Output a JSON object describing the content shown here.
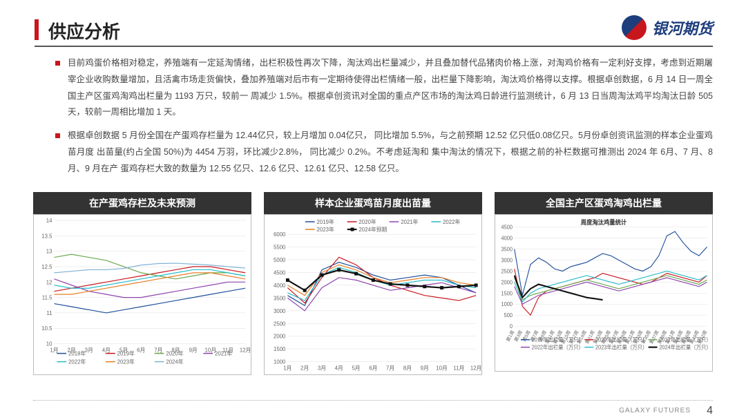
{
  "header": {
    "title": "供应分析",
    "brand": "银河期货",
    "accent_color": "#c8161d"
  },
  "bullets": [
    "目前鸡蛋价格相对稳定，养殖端有一定延淘情绪，出栏积极性再次下降，淘汰鸡出栏量减少，并且叠加替代品猪肉价格上涨，对淘鸡价格有一定利好支撑，考虑到近期屠宰企业收购数量增加，且活禽市场走货偏快，叠加养殖端对后市有一定期待使得出栏情绪一般，出栏量下降影响，淘汰鸡价格得以支撑。根据卓创数据，6 月 14 日一周全国主产区蛋鸡淘鸡出栏量为 1193 万只，较前一 周减少 1.5%。根据卓创资讯对全国的重点产区市场的淘汰鸡日龄进行监测统计，6 月 13 日当周淘汰鸡平均淘汰日龄 505 天，较前一周相比增加 1 天。",
    "根据卓创数据 5 月份全国在产蛋鸡存栏量为 12.44亿只，较上月增加 0.04亿只， 同比增加 5.5%，与之前预期 12.52 亿只低0.08亿只。5月份卓创资讯监测的样本企业蛋鸡苗月度 出苗量(约占全国 50%)为 4454 万羽，环比减少2.8%， 同比减少 0.2%。不考虑延淘和 集中淘汰的情况下，根据之前的补栏数据可推测出 2024 年 6月、7 月、8 月、9 月在产 蛋鸡存栏大致的数量为 12.55 亿只、12.6 亿只、12.61 亿只、12.58 亿只。"
  ],
  "chart1": {
    "title": "在产蛋鸡存栏及未来预测",
    "ylim": [
      10,
      14
    ],
    "yticks": [
      10,
      10.5,
      11,
      11.5,
      12,
      12.5,
      13,
      13.5,
      14
    ],
    "xlabels": [
      "1月",
      "2月",
      "3月",
      "4月",
      "5月",
      "6月",
      "7月",
      "8月",
      "9月",
      "10月",
      "11月",
      "12月"
    ],
    "series": {
      "2018年": {
        "color": "#1f4e9b",
        "data": [
          11.3,
          11.2,
          11.1,
          11.0,
          11.1,
          11.2,
          11.3,
          11.4,
          11.5,
          11.6,
          11.7,
          11.8
        ]
      },
      "2019年": {
        "color": "#c8161d",
        "data": [
          11.7,
          11.8,
          11.9,
          12.0,
          12.1,
          12.2,
          12.3,
          12.4,
          12.5,
          12.5,
          12.4,
          12.3
        ]
      },
      "2020年": {
        "color": "#6aa84f",
        "data": [
          12.8,
          12.9,
          12.8,
          12.7,
          12.5,
          12.3,
          12.2,
          12.1,
          12.2,
          12.3,
          12.3,
          12.2
        ]
      },
      "2021年": {
        "color": "#8e44ad",
        "data": [
          12.1,
          11.9,
          11.7,
          11.6,
          11.5,
          11.5,
          11.6,
          11.7,
          11.8,
          11.9,
          12.0,
          12.0
        ]
      },
      "2022年": {
        "color": "#27bcc9",
        "data": [
          11.9,
          11.8,
          11.8,
          11.9,
          12.0,
          12.1,
          12.2,
          12.3,
          12.4,
          12.4,
          12.3,
          12.2
        ]
      },
      "2023年": {
        "color": "#e67e22",
        "data": [
          11.6,
          11.6,
          11.7,
          11.8,
          11.9,
          12.0,
          12.1,
          12.2,
          12.3,
          12.3,
          12.2,
          12.1
        ]
      },
      "2024年": {
        "color": "#7fb3d5",
        "data": [
          12.3,
          12.35,
          12.4,
          12.4,
          12.44,
          12.55,
          12.6,
          12.61,
          12.58,
          12.55,
          12.5,
          12.45
        ]
      }
    }
  },
  "chart2": {
    "title": "样本企业蛋鸡苗月度出苗量",
    "ylim": [
      1000,
      6000
    ],
    "yticks": [
      1000,
      1500,
      2000,
      2500,
      3000,
      3500,
      4000,
      4500,
      5000,
      5500,
      6000
    ],
    "xlabels": [
      "1月",
      "2月",
      "3月",
      "4月",
      "5月",
      "6月",
      "7月",
      "8月",
      "9月",
      "10月",
      "11月",
      "12月"
    ],
    "series": {
      "2019年": {
        "color": "#1f4e9b",
        "data": [
          3600,
          3200,
          4600,
          4900,
          4700,
          4400,
          4200,
          4300,
          4400,
          4300,
          4000,
          3700
        ]
      },
      "2020年": {
        "color": "#c8161d",
        "data": [
          3900,
          3300,
          4300,
          5100,
          4800,
          4300,
          4000,
          3800,
          3600,
          3500,
          3400,
          3600
        ]
      },
      "2021年": {
        "color": "#8e44ad",
        "data": [
          3500,
          3000,
          3900,
          4300,
          4200,
          4000,
          3800,
          3900,
          4000,
          4100,
          3900,
          3700
        ]
      },
      "2022年": {
        "color": "#27bcc9",
        "data": [
          3700,
          3400,
          4400,
          4700,
          4500,
          4200,
          4000,
          4100,
          4200,
          4200,
          4000,
          3900
        ]
      },
      "2023年": {
        "color": "#e67e22",
        "data": [
          4000,
          3600,
          4500,
          4800,
          4600,
          4300,
          4100,
          4200,
          4300,
          4300,
          4100,
          4000
        ]
      },
      "2024年预期": {
        "color": "#111111",
        "data": [
          4200,
          3800,
          4400,
          4600,
          4454,
          4200,
          4050,
          4000,
          3950,
          3900,
          3950,
          4000
        ],
        "bold": true,
        "marker": true
      }
    }
  },
  "chart3": {
    "title": "全国主产区蛋鸡淘鸡出栏量",
    "inner_title": "周度淘汰鸡量统计",
    "ylim": [
      0,
      4500
    ],
    "yticks": [
      0,
      500,
      1000,
      1500,
      2000,
      2500,
      3000,
      3500,
      4000,
      4500
    ],
    "xlabels": [
      "第1周",
      "第3周",
      "第5周",
      "第7周",
      "第9周",
      "第11周",
      "第13周",
      "第15周",
      "第17周",
      "第19周",
      "第21周",
      "第23周",
      "第25周",
      "第27周",
      "第29周",
      "第31周",
      "第33周",
      "第35周",
      "第37周",
      "第39周",
      "第41周",
      "第43周",
      "第46周",
      "第49周",
      "第52周"
    ],
    "series": {
      "2019年出栏量（万只）": {
        "color": "#1f4e9b",
        "data": [
          3500,
          1400,
          2800,
          3100,
          2900,
          2600,
          2500,
          2700,
          2800,
          2900,
          3100,
          3300,
          3200,
          3000,
          2800,
          2600,
          2500,
          2700,
          3200,
          4100,
          4300,
          3800,
          3400,
          3200,
          3600
        ]
      },
      "2020年出栏量（万只）": {
        "color": "#c8161d",
        "data": [
          2600,
          900,
          500,
          1300,
          1600,
          1700,
          1800,
          1900,
          2000,
          2100,
          2200,
          2400,
          2300,
          2200,
          2100,
          2000,
          1900,
          2000,
          2200,
          2400,
          2300,
          2200,
          2100,
          2000,
          2300
        ]
      },
      "2021年出栏量（万只）": {
        "color": "#6aa84f",
        "data": [
          2200,
          1200,
          1400,
          1500,
          1600,
          1700,
          1800,
          1900,
          2000,
          2100,
          2000,
          1900,
          1800,
          1700,
          1800,
          1900,
          2000,
          2100,
          2200,
          2300,
          2200,
          2100,
          2000,
          1900,
          2100
        ]
      },
      "2022年出栏量（万只）": {
        "color": "#8e44ad",
        "data": [
          1800,
          1000,
          1200,
          1400,
          1500,
          1600,
          1700,
          1800,
          1900,
          2000,
          1900,
          1800,
          1700,
          1600,
          1700,
          1800,
          1900,
          2000,
          2100,
          2200,
          2100,
          2000,
          1900,
          1800,
          2000
        ]
      },
      "2023年出栏量（万只）": {
        "color": "#27bcc9",
        "data": [
          2000,
          1100,
          1500,
          1700,
          1800,
          1900,
          2000,
          2100,
          2200,
          2300,
          2200,
          2100,
          2000,
          1900,
          2000,
          2100,
          2200,
          2300,
          2400,
          2500,
          2400,
          2300,
          2200,
          2100,
          2300
        ]
      },
      "2024年出栏量（万只）": {
        "color": "#111111",
        "data": [
          2300,
          1300,
          1700,
          1900,
          1800,
          1700,
          1600,
          1500,
          1400,
          1300,
          1250,
          1193,
          null,
          null,
          null,
          null,
          null,
          null,
          null,
          null,
          null,
          null,
          null,
          null,
          null
        ],
        "bold": true
      }
    }
  },
  "footer": {
    "brand": "GALAXY FUTURES",
    "page": "4"
  }
}
